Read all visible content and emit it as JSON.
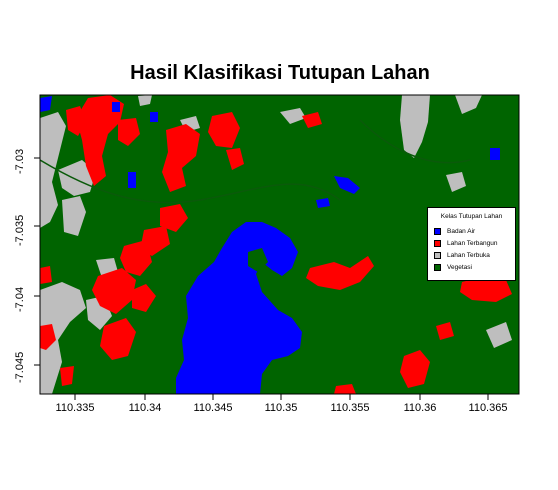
{
  "title": "Hasil Klasifikasi Tutupan Lahan",
  "x_ticks": [
    "110.335",
    "110.34",
    "110.345",
    "110.35",
    "110.355",
    "110.36",
    "110.365"
  ],
  "y_ticks": [
    "-7.03",
    "-7.035",
    "-7.04",
    "-7.045"
  ],
  "legend": {
    "title": "Kelas Tutupan Lahan",
    "items": [
      {
        "label": "Badan Air",
        "color": "#0000ff"
      },
      {
        "label": "Lahan Terbangun",
        "color": "#ff0000"
      },
      {
        "label": "Lahan Terbuka",
        "color": "#bebebe"
      },
      {
        "label": "Vegetasi",
        "color": "#006400"
      }
    ]
  },
  "colors": {
    "water": "#0000ff",
    "built": "#ff0000",
    "open": "#bebebe",
    "vegetation": "#006400"
  }
}
